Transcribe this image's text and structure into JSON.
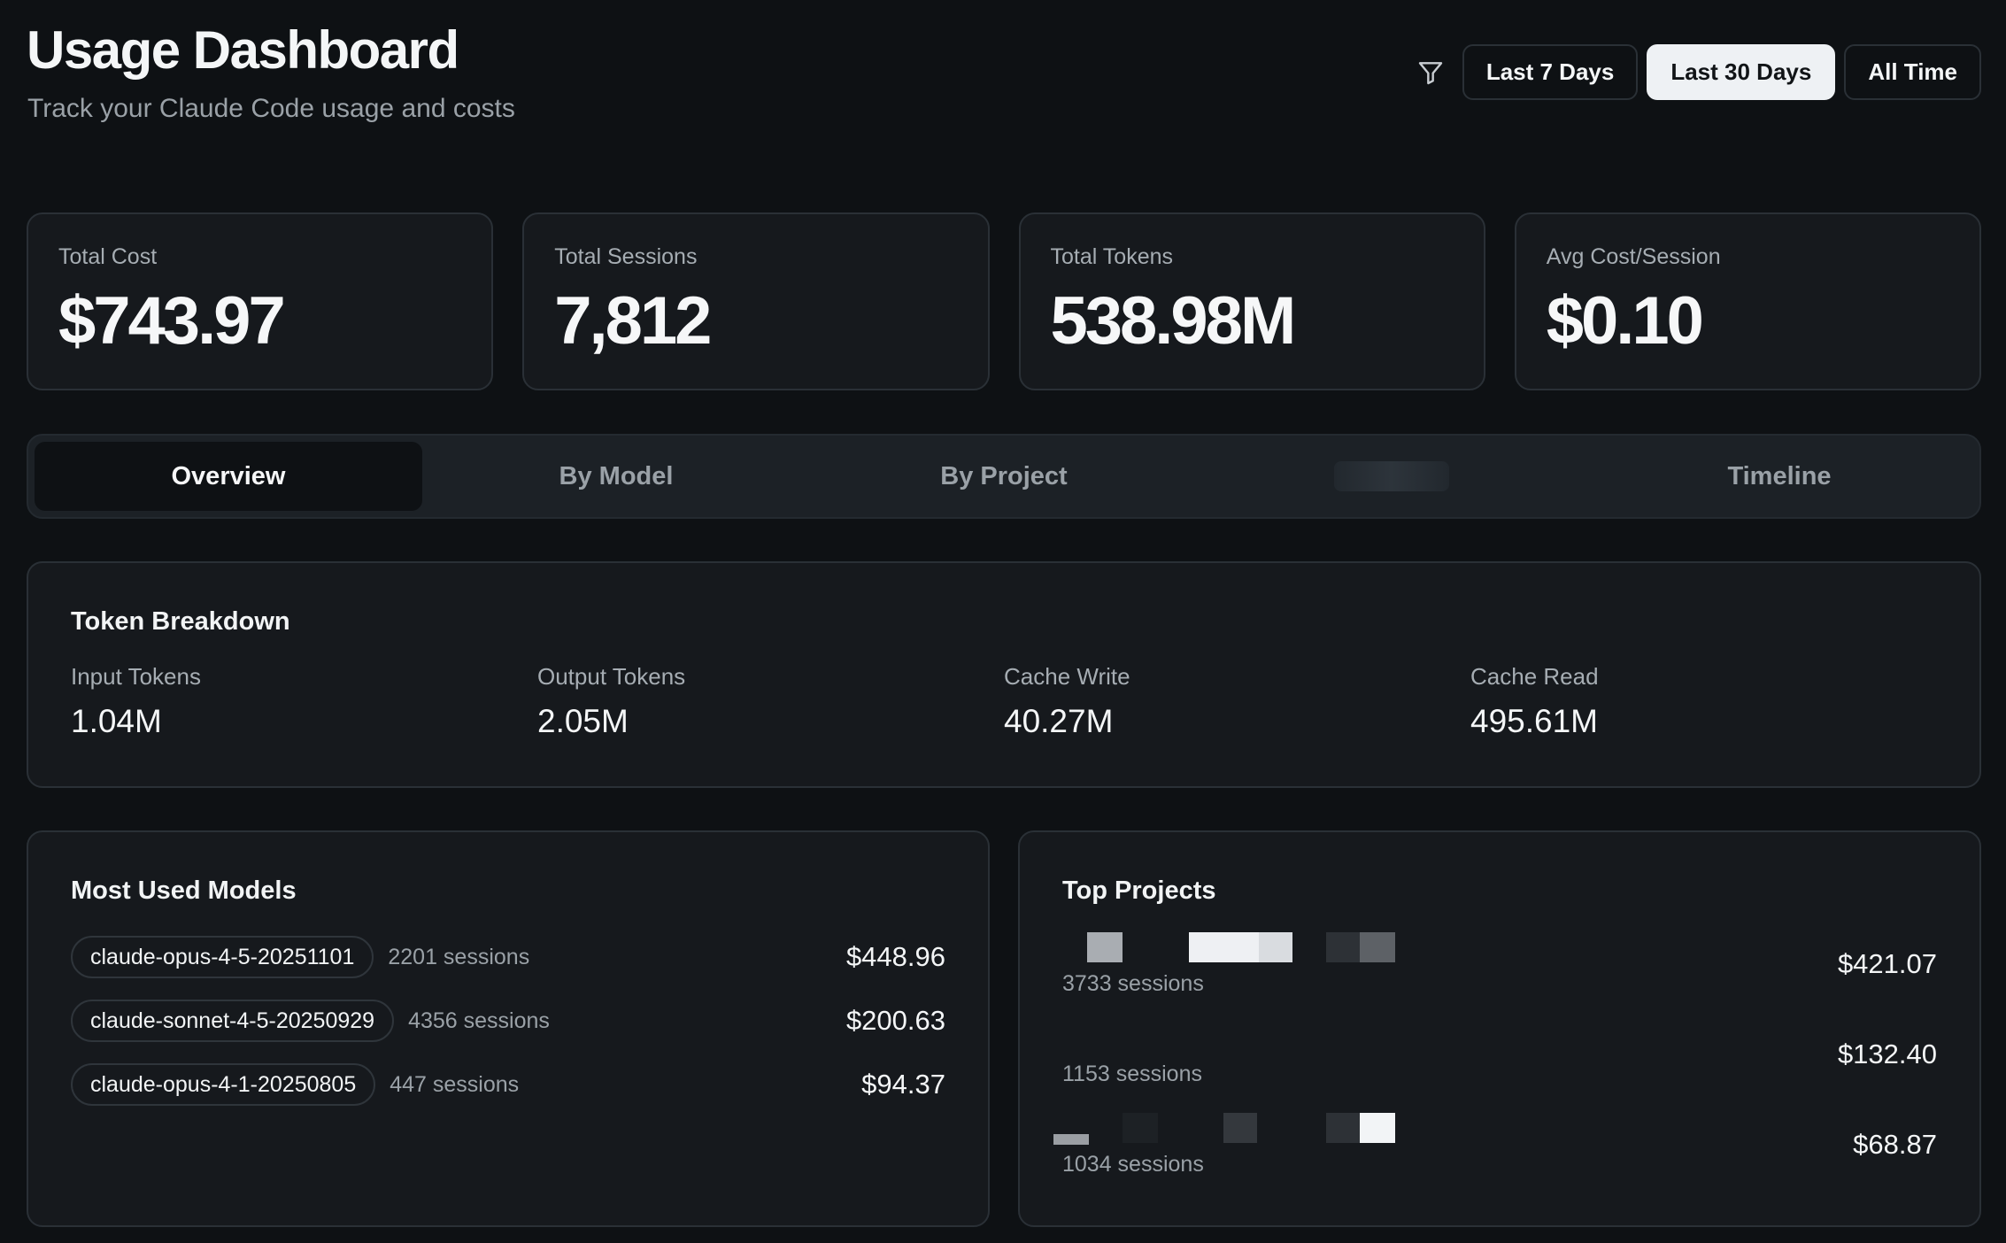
{
  "header": {
    "title": "Usage Dashboard",
    "subtitle": "Track your Claude Code usage and costs"
  },
  "filters": {
    "icon": "filter-icon",
    "ranges": [
      "Last 7 Days",
      "Last 30 Days",
      "All Time"
    ],
    "selected": "Last 30 Days"
  },
  "stats": [
    {
      "label": "Total Cost",
      "value": "$743.97"
    },
    {
      "label": "Total Sessions",
      "value": "7,812"
    },
    {
      "label": "Total Tokens",
      "value": "538.98M"
    },
    {
      "label": "Avg Cost/Session",
      "value": "$0.10"
    }
  ],
  "tabs": {
    "overview": "Overview",
    "by_model": "By Model",
    "by_project": "By Project",
    "timeline": "Timeline",
    "active": "Overview"
  },
  "token_breakdown": {
    "title": "Token Breakdown",
    "items": [
      {
        "label": "Input Tokens",
        "value": "1.04M"
      },
      {
        "label": "Output Tokens",
        "value": "2.05M"
      },
      {
        "label": "Cache Write",
        "value": "40.27M"
      },
      {
        "label": "Cache Read",
        "value": "495.61M"
      }
    ]
  },
  "models": {
    "title": "Most Used Models",
    "items": [
      {
        "name": "claude-opus-4-5-20251101",
        "sessions": "2201 sessions",
        "cost": "$448.96"
      },
      {
        "name": "claude-sonnet-4-5-20250929",
        "sessions": "4356 sessions",
        "cost": "$200.63"
      },
      {
        "name": "claude-opus-4-1-20250805",
        "sessions": "447 sessions",
        "cost": "$94.37"
      }
    ]
  },
  "projects": {
    "title": "Top Projects",
    "items": [
      {
        "sessions": "3733 sessions",
        "cost": "$421.07"
      },
      {
        "sessions": "1153 sessions",
        "cost": "$132.40"
      },
      {
        "sessions": "1034 sessions",
        "cost": "$68.87"
      }
    ]
  }
}
